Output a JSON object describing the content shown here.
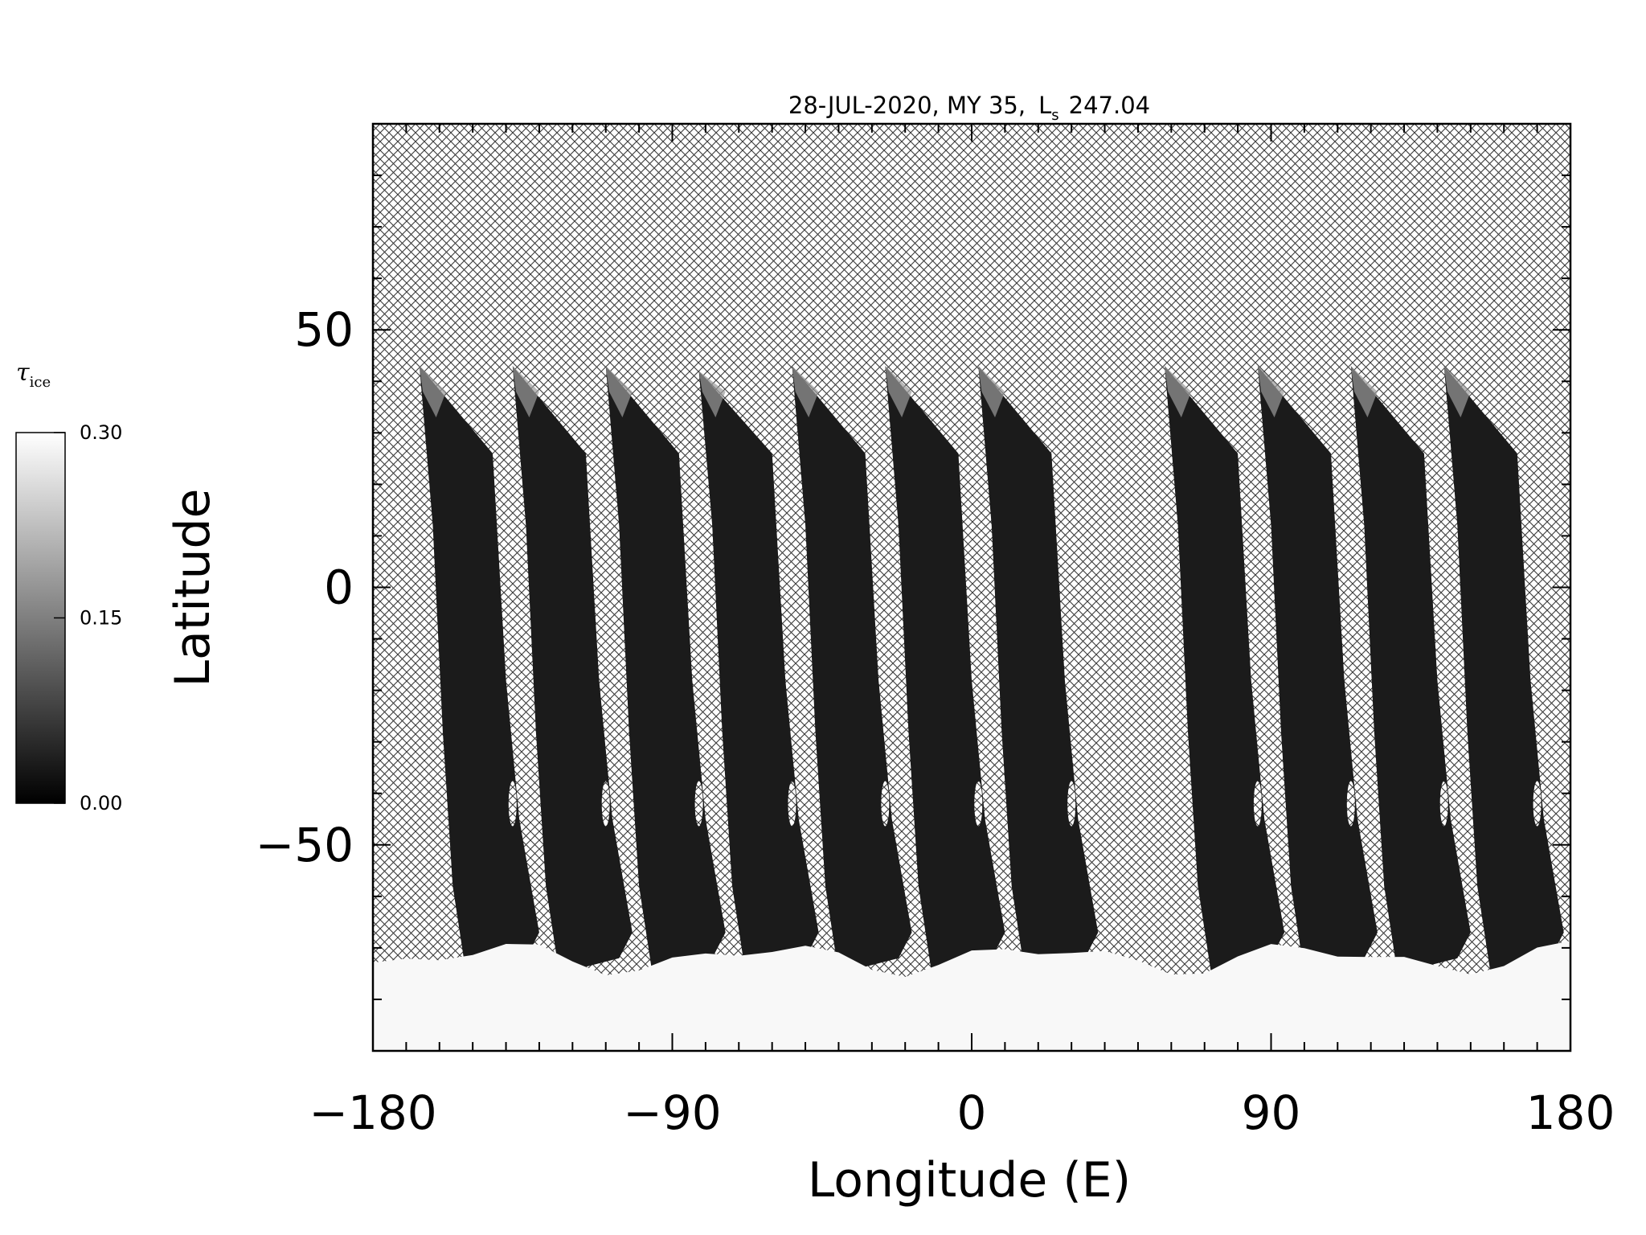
{
  "chart_data": {
    "type": "heatmap",
    "title": {
      "date": "28-JUL-2020, MY 35,",
      "ls_symbol": "L",
      "ls_subscript": "s",
      "ls_value": "247.04"
    },
    "xlabel": "Longitude (E)",
    "ylabel": "Latitude",
    "xlim": [
      -180,
      180
    ],
    "ylim": [
      -90,
      90
    ],
    "x_ticks": [
      -180,
      -90,
      0,
      90,
      180
    ],
    "x_tick_labels": [
      "−180",
      "−90",
      "0",
      "90",
      "180"
    ],
    "y_ticks": [
      -50,
      0,
      50
    ],
    "y_tick_labels": [
      "−50",
      "0",
      "50"
    ],
    "no_data_pattern": "crosshatch",
    "swaths": [
      {
        "lon_top": -166,
        "lat_top": 43
      },
      {
        "lon_top": -138,
        "lat_top": 43
      },
      {
        "lon_top": -110,
        "lat_top": 43
      },
      {
        "lon_top": -82,
        "lat_top": 42
      },
      {
        "lon_top": -54,
        "lat_top": 43
      },
      {
        "lon_top": -26,
        "lat_top": 43
      },
      {
        "lon_top": 2,
        "lat_top": 43
      },
      {
        "lon_top": 58,
        "lat_top": 43
      },
      {
        "lon_top": 86,
        "lat_top": 43
      },
      {
        "lon_top": 114,
        "lat_top": 43
      },
      {
        "lon_top": 142,
        "lat_top": 43
      }
    ],
    "south_polar_bright_edge_lat": -72,
    "colorbar": {
      "title_symbol": "τ",
      "title_subscript": "ice",
      "min": 0.0,
      "max": 0.3,
      "ticks": [
        0.0,
        0.15,
        0.3
      ],
      "tick_labels": [
        "0.00",
        "0.15",
        "0.30"
      ],
      "colormap": "grayscale",
      "color_low": "#000000",
      "color_high": "#ffffff"
    },
    "colors": {
      "swath_fill": "#1b1b1b",
      "ice_cap": "#f8f8f8",
      "hatch": "#3a3a3a"
    }
  }
}
